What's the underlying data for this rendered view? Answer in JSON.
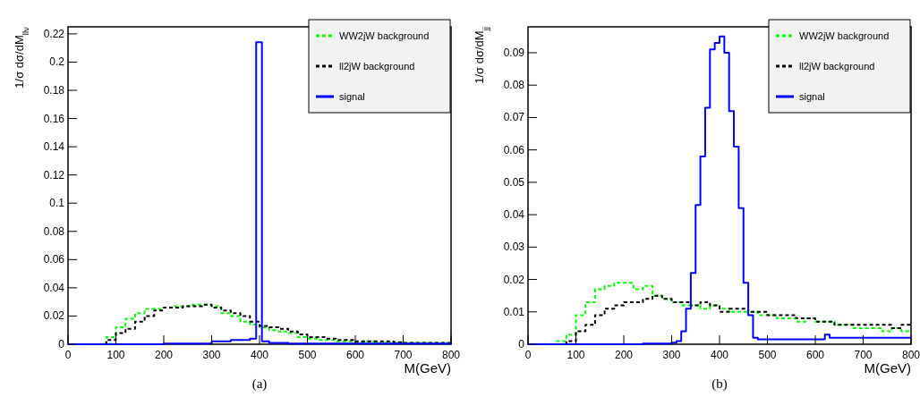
{
  "chart_data": [
    {
      "type": "step",
      "xlabel": "M(GeV)",
      "ylabel": "1/σ dσ/dM$_{llν}$",
      "annotations": [
        "(a)"
      ],
      "xlim": [
        0,
        800
      ],
      "xticks": [
        0,
        100,
        200,
        300,
        400,
        500,
        600,
        700,
        800
      ],
      "ylim": [
        0,
        0.225
      ],
      "yticks": [
        0,
        0.02,
        0.04,
        0.06,
        0.08,
        0.1,
        0.12,
        0.14,
        0.16,
        0.18,
        0.2,
        0.22
      ],
      "grid": false,
      "legend": "top right",
      "series": [
        {
          "name": "WW2jW background",
          "color": "#00ff00",
          "line_style": "dashed",
          "x": [
            0,
            80,
            100,
            120,
            140,
            160,
            180,
            200,
            220,
            240,
            260,
            280,
            300,
            320,
            340,
            360,
            380,
            400,
            420,
            440,
            460,
            480,
            500,
            520,
            540,
            560,
            580,
            600,
            620,
            640,
            660,
            680,
            700,
            720,
            740,
            760,
            780,
            800
          ],
          "values": [
            0,
            0.005,
            0.012,
            0.018,
            0.022,
            0.025,
            0.025,
            0.026,
            0.027,
            0.027,
            0.028,
            0.028,
            0.027,
            0.022,
            0.02,
            0.016,
            0.014,
            0.012,
            0.01,
            0.009,
            0.008,
            0.005,
            0.004,
            0.003,
            0.003,
            0.002,
            0.002,
            0.0015,
            0.002,
            0.001,
            0.001,
            0.001,
            0.001,
            0.001,
            0.001,
            0.001,
            0.001,
            0.001
          ]
        },
        {
          "name": "ll2jW background",
          "color": "#000000",
          "line_style": "dashed",
          "x": [
            0,
            80,
            100,
            120,
            140,
            160,
            180,
            200,
            220,
            240,
            260,
            280,
            300,
            320,
            340,
            360,
            380,
            400,
            420,
            440,
            460,
            480,
            500,
            520,
            540,
            560,
            580,
            600,
            620,
            640,
            660,
            680,
            700,
            720,
            740,
            760,
            780,
            800
          ],
          "values": [
            0,
            0.003,
            0.008,
            0.011,
            0.016,
            0.02,
            0.024,
            0.026,
            0.026,
            0.027,
            0.027,
            0.028,
            0.026,
            0.024,
            0.022,
            0.02,
            0.016,
            0.013,
            0.012,
            0.011,
            0.009,
            0.007,
            0.005,
            0.005,
            0.004,
            0.003,
            0.003,
            0.002,
            0.002,
            0.002,
            0.002,
            0.0015,
            0.001,
            0.001,
            0.001,
            0.001,
            0.001,
            0.001
          ]
        },
        {
          "name": "signal",
          "color": "#0000ff",
          "line_style": "solid",
          "x": [
            0,
            200,
            300,
            340,
            380,
            393,
            405,
            420,
            460,
            800
          ],
          "values": [
            0,
            0.0005,
            0.002,
            0.003,
            0.004,
            0.214,
            0.002,
            0.001,
            0.0005,
            0.0005
          ]
        }
      ]
    },
    {
      "type": "step",
      "xlabel": "M(GeV)",
      "ylabel": "1/σ dσ/dM$_{jj}$",
      "annotations": [
        "(b)"
      ],
      "xlim": [
        0,
        800
      ],
      "xticks": [
        0,
        100,
        200,
        300,
        400,
        500,
        600,
        700,
        800
      ],
      "ylim": [
        0,
        0.098
      ],
      "yticks": [
        0,
        0.01,
        0.02,
        0.03,
        0.04,
        0.05,
        0.06,
        0.07,
        0.08,
        0.09
      ],
      "grid": false,
      "legend": "top right",
      "series": [
        {
          "name": "WW2jW background",
          "color": "#00ff00",
          "line_style": "dashed",
          "x": [
            0,
            60,
            80,
            100,
            120,
            140,
            160,
            180,
            200,
            220,
            240,
            260,
            280,
            300,
            320,
            340,
            360,
            380,
            400,
            420,
            440,
            460,
            480,
            500,
            520,
            540,
            560,
            580,
            600,
            620,
            640,
            660,
            680,
            700,
            720,
            740,
            760,
            780,
            800
          ],
          "values": [
            0,
            0.001,
            0.003,
            0.009,
            0.013,
            0.017,
            0.018,
            0.019,
            0.019,
            0.017,
            0.018,
            0.015,
            0.014,
            0.013,
            0.012,
            0.012,
            0.011,
            0.012,
            0.011,
            0.01,
            0.01,
            0.01,
            0.009,
            0.009,
            0.008,
            0.008,
            0.007,
            0.008,
            0.007,
            0.007,
            0.006,
            0.006,
            0.005,
            0.005,
            0.005,
            0.004,
            0.005,
            0.004,
            0.004
          ]
        },
        {
          "name": "ll2jW background",
          "color": "#000000",
          "line_style": "dashed",
          "x": [
            0,
            80,
            100,
            120,
            140,
            160,
            180,
            200,
            220,
            240,
            260,
            280,
            300,
            320,
            340,
            360,
            380,
            400,
            420,
            440,
            460,
            480,
            500,
            520,
            540,
            560,
            580,
            600,
            620,
            640,
            660,
            680,
            700,
            720,
            740,
            760,
            780,
            800
          ],
          "values": [
            0,
            0.001,
            0.004,
            0.006,
            0.009,
            0.011,
            0.012,
            0.013,
            0.013,
            0.014,
            0.015,
            0.014,
            0.013,
            0.013,
            0.012,
            0.013,
            0.012,
            0.01,
            0.011,
            0.011,
            0.01,
            0.01,
            0.009,
            0.009,
            0.009,
            0.008,
            0.008,
            0.007,
            0.007,
            0.006,
            0.006,
            0.006,
            0.006,
            0.006,
            0.006,
            0.005,
            0.006,
            0.006
          ]
        },
        {
          "name": "signal",
          "color": "#0000ff",
          "line_style": "solid",
          "x": [
            0,
            240,
            300,
            310,
            320,
            330,
            340,
            350,
            360,
            370,
            380,
            390,
            400,
            410,
            420,
            430,
            440,
            450,
            460,
            470,
            480,
            620,
            630,
            800
          ],
          "values": [
            0,
            0.0002,
            0.0005,
            0.001,
            0.004,
            0.011,
            0.022,
            0.043,
            0.058,
            0.073,
            0.091,
            0.093,
            0.095,
            0.09,
            0.072,
            0.061,
            0.042,
            0.019,
            0.009,
            0.002,
            0.0015,
            0.003,
            0.002,
            0.002
          ]
        }
      ]
    }
  ]
}
